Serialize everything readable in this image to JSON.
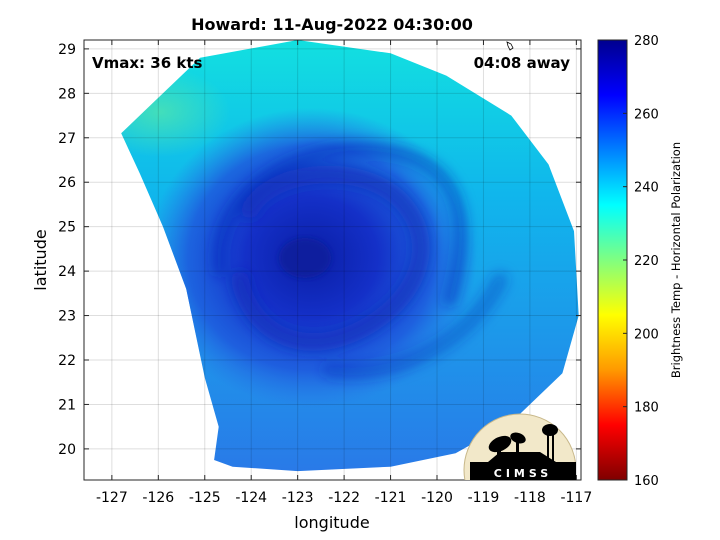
{
  "chart_data": {
    "type": "heatmap",
    "title": "Howard: 11-Aug-2022 04:30:00",
    "xlabel": "longitude",
    "ylabel": "latitude",
    "xlim": [
      -127.6,
      -116.9
    ],
    "ylim": [
      19.3,
      29.2
    ],
    "xticks": [
      -127,
      -126,
      -125,
      -124,
      -123,
      -122,
      -121,
      -120,
      -119,
      -118,
      -117
    ],
    "yticks": [
      20,
      21,
      22,
      23,
      24,
      25,
      26,
      27,
      28,
      29
    ],
    "grid": true,
    "annotations": {
      "vmax": "Vmax: 36 kts",
      "away": "04:08 away"
    },
    "colorbar": {
      "label": "Brightness Temp - Horizontal Polarization",
      "range": [
        160,
        280
      ],
      "ticks": [
        160,
        180,
        200,
        220,
        240,
        260,
        280
      ],
      "colormap": [
        "#7f0000",
        "#ff0000",
        "#ff9900",
        "#ffff00",
        "#80ff80",
        "#00ffff",
        "#0080ff",
        "#0000ff",
        "#00008f"
      ]
    },
    "field": {
      "center_lon": -122.7,
      "center_lat": 24.3,
      "center_value": 262,
      "outer_value": 240,
      "northwest_value": 232,
      "swath_boundary": [
        [
          -126.8,
          27.1
        ],
        [
          -125.1,
          28.8
        ],
        [
          -123,
          29.2
        ],
        [
          -121,
          28.9
        ],
        [
          -119.8,
          28.4
        ],
        [
          -118.4,
          27.5
        ],
        [
          -117.6,
          26.4
        ],
        [
          -117.05,
          24.9
        ],
        [
          -116.95,
          23
        ],
        [
          -117.3,
          21.7
        ],
        [
          -118.4,
          20.6
        ],
        [
          -119.6,
          19.9
        ],
        [
          -121,
          19.6
        ],
        [
          -123,
          19.5
        ],
        [
          -124.4,
          19.6
        ],
        [
          -124.8,
          19.75
        ],
        [
          -124.7,
          20.5
        ],
        [
          -125.0,
          21.6
        ],
        [
          -125.4,
          23.6
        ],
        [
          -125.9,
          25.0
        ],
        [
          -126.4,
          26.2
        ],
        [
          -126.8,
          27.1
        ]
      ]
    }
  },
  "logo": {
    "text": "CIMSS"
  }
}
